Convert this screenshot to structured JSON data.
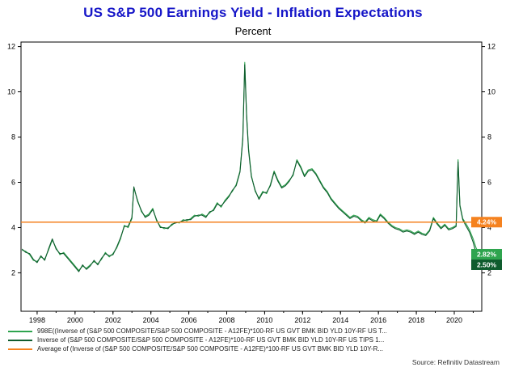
{
  "colors": {
    "title": "#1616c8",
    "series_light_green": "#2ea44e",
    "series_dark_green": "#0f5c2e",
    "average_orange": "#f5821f",
    "axis": "#000000"
  },
  "chart_data": {
    "type": "line",
    "title": "US S&P 500 Earnings Yield - Inflation Expectations",
    "subtitle": "Percent",
    "source": "Source: Refinitiv Datastream",
    "grid": false,
    "legend_position": "bottom-left",
    "xlim": [
      1997.15,
      2021.45
    ],
    "ylim": [
      0.3,
      12.2
    ],
    "yticks": [
      2,
      4,
      6,
      8,
      10,
      12
    ],
    "ytick_labels": [
      "2",
      "4",
      "6",
      "8",
      "10",
      "12"
    ],
    "xticks": [
      1998,
      2000,
      2002,
      2004,
      2006,
      2008,
      2010,
      2012,
      2014,
      2016,
      2018,
      2020
    ],
    "xtick_labels": [
      "1998",
      "2000",
      "2002",
      "2004",
      "2006",
      "2008",
      "2010",
      "2012",
      "2014",
      "2016",
      "2018",
      "2020"
    ],
    "x": [
      1997.2,
      1997.4,
      1997.6,
      1997.8,
      1998.0,
      1998.2,
      1998.4,
      1998.6,
      1998.8,
      1999.0,
      1999.2,
      1999.4,
      1999.6,
      1999.8,
      2000.0,
      2000.2,
      2000.4,
      2000.6,
      2000.8,
      2001.0,
      2001.2,
      2001.4,
      2001.6,
      2001.8,
      2002.0,
      2002.2,
      2002.4,
      2002.6,
      2002.8,
      2003.0,
      2003.1,
      2003.3,
      2003.5,
      2003.7,
      2003.9,
      2004.1,
      2004.3,
      2004.5,
      2004.7,
      2004.9,
      2005.1,
      2005.3,
      2005.5,
      2005.7,
      2005.9,
      2006.1,
      2006.3,
      2006.5,
      2006.7,
      2006.9,
      2007.1,
      2007.3,
      2007.5,
      2007.7,
      2007.9,
      2008.1,
      2008.3,
      2008.5,
      2008.7,
      2008.85,
      2008.95,
      2009.05,
      2009.15,
      2009.3,
      2009.5,
      2009.7,
      2009.9,
      2010.1,
      2010.3,
      2010.5,
      2010.7,
      2010.9,
      2011.1,
      2011.3,
      2011.5,
      2011.7,
      2011.9,
      2012.1,
      2012.3,
      2012.5,
      2012.7,
      2012.9,
      2013.1,
      2013.3,
      2013.5,
      2013.7,
      2013.9,
      2014.1,
      2014.3,
      2014.5,
      2014.7,
      2014.9,
      2015.1,
      2015.3,
      2015.5,
      2015.7,
      2015.9,
      2016.1,
      2016.3,
      2016.5,
      2016.7,
      2016.9,
      2017.1,
      2017.3,
      2017.5,
      2017.7,
      2017.9,
      2018.1,
      2018.3,
      2018.5,
      2018.7,
      2018.9,
      2019.1,
      2019.3,
      2019.5,
      2019.7,
      2019.9,
      2020.1,
      2020.2,
      2020.3,
      2020.45,
      2020.6,
      2020.8,
      2021.0,
      2021.15,
      2021.3
    ],
    "series": [
      {
        "name": "998E((Inverse of (S&P 500 COMPOSITE/S&P 500 COMPOSITE - A12FE)*100-RF US GVT BMK BID YLD 10Y-RF US T...",
        "color": "#2ea44e",
        "y": [
          3.0,
          2.95,
          2.8,
          2.55,
          2.5,
          2.7,
          2.6,
          3.0,
          3.45,
          3.1,
          2.8,
          2.9,
          2.7,
          2.5,
          2.3,
          2.1,
          2.3,
          2.2,
          2.35,
          2.5,
          2.4,
          2.6,
          2.9,
          2.7,
          2.85,
          3.1,
          3.5,
          4.1,
          4.0,
          4.4,
          5.75,
          5.2,
          4.7,
          4.5,
          4.6,
          4.85,
          4.3,
          4.05,
          3.95,
          4.0,
          4.1,
          4.25,
          4.2,
          4.35,
          4.3,
          4.4,
          4.55,
          4.5,
          4.6,
          4.5,
          4.65,
          4.8,
          5.1,
          4.9,
          5.2,
          5.4,
          5.6,
          5.9,
          6.5,
          8.0,
          11.3,
          9.0,
          7.5,
          6.3,
          5.6,
          5.3,
          5.6,
          5.5,
          5.9,
          6.5,
          6.1,
          5.8,
          5.9,
          6.1,
          6.3,
          7.0,
          6.7,
          6.3,
          6.55,
          6.6,
          6.4,
          6.1,
          5.8,
          5.6,
          5.3,
          5.1,
          4.9,
          4.75,
          4.6,
          4.45,
          4.55,
          4.5,
          4.35,
          4.25,
          4.45,
          4.35,
          4.3,
          4.6,
          4.45,
          4.25,
          4.1,
          4.0,
          3.95,
          3.85,
          3.9,
          3.85,
          3.75,
          3.85,
          3.75,
          3.7,
          3.9,
          4.45,
          4.2,
          4.0,
          4.15,
          3.95,
          4.0,
          4.1,
          7.0,
          5.0,
          4.4,
          4.2,
          3.9,
          3.5,
          3.1,
          2.82
        ]
      },
      {
        "name": "Inverse of (S&P 500 COMPOSITE/S&P 500 COMPOSITE - A12FE)*100-RF US GVT BMK BID YLD 10Y-RF US TIPS 1...",
        "color": "#0f5c2e",
        "y": [
          3.05,
          2.9,
          2.85,
          2.6,
          2.45,
          2.75,
          2.55,
          3.05,
          3.5,
          3.05,
          2.85,
          2.85,
          2.65,
          2.45,
          2.25,
          2.05,
          2.35,
          2.15,
          2.3,
          2.55,
          2.35,
          2.65,
          2.85,
          2.75,
          2.8,
          3.15,
          3.55,
          4.05,
          4.05,
          4.45,
          5.8,
          5.15,
          4.75,
          4.45,
          4.55,
          4.8,
          4.35,
          4.0,
          4.0,
          3.95,
          4.15,
          4.2,
          4.25,
          4.3,
          4.35,
          4.35,
          4.5,
          4.55,
          4.55,
          4.45,
          4.7,
          4.75,
          5.05,
          4.95,
          5.15,
          5.35,
          5.65,
          5.85,
          6.45,
          7.9,
          11.2,
          8.9,
          7.4,
          6.25,
          5.65,
          5.25,
          5.55,
          5.55,
          5.85,
          6.45,
          6.05,
          5.75,
          5.85,
          6.05,
          6.35,
          6.95,
          6.65,
          6.25,
          6.5,
          6.55,
          6.35,
          6.05,
          5.75,
          5.55,
          5.25,
          5.05,
          4.85,
          4.7,
          4.55,
          4.4,
          4.5,
          4.45,
          4.3,
          4.2,
          4.4,
          4.3,
          4.25,
          4.55,
          4.4,
          4.2,
          4.05,
          3.95,
          3.9,
          3.8,
          3.85,
          3.8,
          3.7,
          3.8,
          3.7,
          3.65,
          3.85,
          4.4,
          4.15,
          3.95,
          4.1,
          3.9,
          3.95,
          4.05,
          6.9,
          4.95,
          4.35,
          4.1,
          3.8,
          3.35,
          2.85,
          2.5
        ]
      },
      {
        "name": "Average of (Inverse of (S&P 500 COMPOSITE/S&P 500 COMPOSITE - A12FE)*100-RF US GVT BMK BID YLD 10Y-R...",
        "color": "#f5821f",
        "type": "hline",
        "value": 4.24
      }
    ],
    "end_labels": [
      {
        "text": "4.24%",
        "value": 4.24,
        "color": "#f5821f"
      },
      {
        "text": "2.82%",
        "value": 2.82,
        "color": "#2ea44e"
      },
      {
        "text": "2.50%",
        "value": 2.5,
        "color": "#0f5c2e"
      }
    ]
  }
}
